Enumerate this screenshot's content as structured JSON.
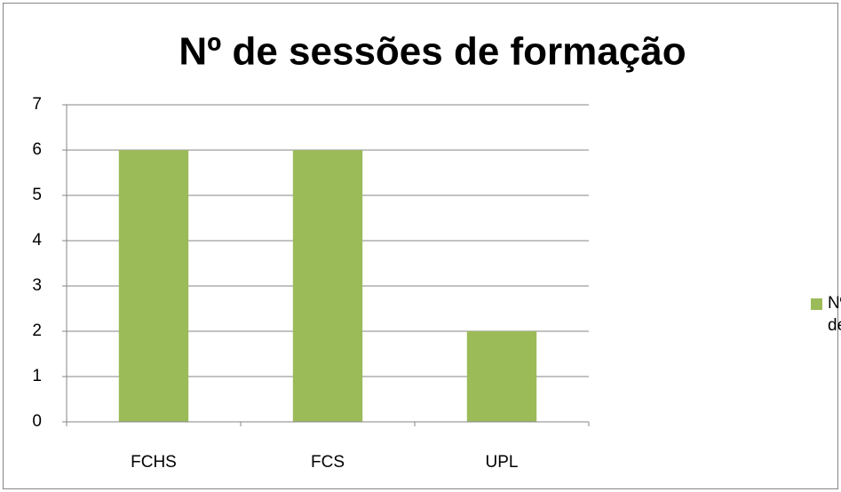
{
  "chart_data": {
    "type": "bar",
    "title": "Nº de sessões de formação",
    "categories": [
      "FCHS",
      "FCS",
      "UPL"
    ],
    "series": [
      {
        "name": "Nº de sessões de formação",
        "color": "#9bbb59",
        "values": [
          6,
          6,
          2
        ]
      }
    ],
    "ylim": [
      0,
      7
    ],
    "yticks": [
      0,
      1,
      2,
      3,
      4,
      5,
      6,
      7
    ],
    "grid": true,
    "legend": "right"
  }
}
